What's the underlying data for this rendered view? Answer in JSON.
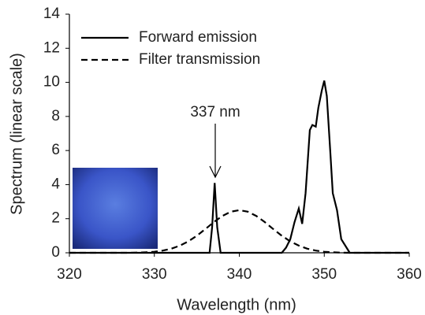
{
  "chart_data": {
    "type": "line",
    "x_label": "Wavelength (nm)",
    "y_label": "Spectrum (linear scale)",
    "annotation": "337 nm",
    "xlim": [
      320,
      360
    ],
    "xticks": [
      320,
      330,
      340,
      350,
      360
    ],
    "ylim": [
      0,
      14
    ],
    "yticks": [
      0,
      2,
      4,
      6,
      8,
      10,
      12,
      14
    ],
    "legend": "upper left",
    "series": [
      {
        "name": "Forward emission",
        "color": "#000000",
        "dash": "solid",
        "x": [
          320,
          336.5,
          336.8,
          337.1,
          337.4,
          337.8,
          345,
          345.5,
          346,
          346.5,
          347,
          347.4,
          347.8,
          348.3,
          348.6,
          349,
          349.3,
          349.7,
          350,
          350.3,
          350.7,
          351,
          351.5,
          352,
          353,
          360
        ],
        "values": [
          0,
          0,
          1.5,
          4.1,
          1.5,
          0,
          0,
          0.3,
          0.8,
          1.8,
          2.6,
          1.7,
          3.5,
          7.2,
          7.5,
          7.4,
          8.5,
          9.5,
          10.1,
          9.2,
          6.0,
          3.5,
          2.5,
          0.8,
          0,
          0
        ]
      },
      {
        "name": "Filter transmission",
        "color": "#000000",
        "dash": "dashed",
        "x": [
          320,
          327,
          328,
          329,
          330,
          331,
          332,
          333,
          334,
          335,
          336,
          337,
          338,
          339,
          340,
          341,
          342,
          343,
          344,
          345,
          346,
          347,
          348,
          349,
          350,
          351,
          352,
          353,
          360
        ],
        "values": [
          0,
          0,
          0.01,
          0.03,
          0.06,
          0.13,
          0.24,
          0.42,
          0.67,
          1.0,
          1.39,
          1.8,
          2.16,
          2.41,
          2.5,
          2.41,
          2.16,
          1.8,
          1.39,
          1.0,
          0.67,
          0.42,
          0.24,
          0.13,
          0.06,
          0.03,
          0.01,
          0,
          0
        ]
      }
    ]
  }
}
